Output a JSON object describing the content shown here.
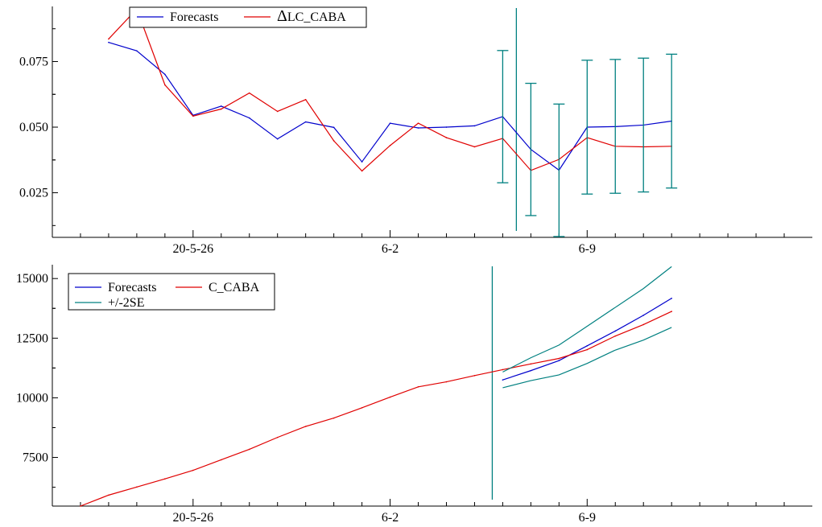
{
  "colors": {
    "forecast": "#0000cc",
    "actual": "#e00000",
    "band": "#008080",
    "axis": "#000000"
  },
  "chart_data": [
    {
      "type": "line",
      "title": "",
      "xlabel": "",
      "ylabel": "",
      "x": [
        "2020-05-22",
        "2020-05-23",
        "2020-05-24",
        "2020-05-25",
        "2020-05-26",
        "2020-05-27",
        "2020-05-28",
        "2020-05-29",
        "2020-05-30",
        "2020-05-31",
        "2020-06-01",
        "2020-06-02",
        "2020-06-03",
        "2020-06-04",
        "2020-06-05",
        "2020-06-06",
        "2020-06-07",
        "2020-06-08",
        "2020-06-09",
        "2020-06-10",
        "2020-06-11",
        "2020-06-12",
        "2020-06-13",
        "2020-06-14",
        "2020-06-15",
        "2020-06-16"
      ],
      "xlim": [
        "2020-05-21",
        "2020-06-17"
      ],
      "x_ticks": [
        {
          "x": "2020-05-26",
          "label": "20-5-26"
        },
        {
          "x": "2020-06-02",
          "label": "6-2"
        },
        {
          "x": "2020-06-09",
          "label": "6-9"
        }
      ],
      "y_ticks": [
        {
          "value": 0.025,
          "label": "0.025"
        },
        {
          "value": 0.05,
          "label": "0.050"
        },
        {
          "value": 0.075,
          "label": "0.075"
        }
      ],
      "ylim": [
        0.008,
        0.096
      ],
      "forecast_origin": "2020-06-07",
      "legend": {
        "placement": "top-left",
        "entries": [
          "Forecasts",
          "ΔLC_CABA"
        ]
      },
      "series": [
        {
          "name": "Forecasts",
          "color_key": "forecast",
          "style": "line",
          "x": [
            "2020-05-23",
            "2020-05-24",
            "2020-05-25",
            "2020-05-26",
            "2020-05-27",
            "2020-05-28",
            "2020-05-29",
            "2020-05-30",
            "2020-05-31",
            "2020-06-01",
            "2020-06-02",
            "2020-06-03",
            "2020-06-04",
            "2020-06-05",
            "2020-06-06",
            "2020-06-07",
            "2020-06-08",
            "2020-06-09",
            "2020-06-10",
            "2020-06-11",
            "2020-06-12"
          ],
          "values": [
            0.0823,
            0.0791,
            0.0701,
            0.0545,
            0.058,
            0.0535,
            0.0455,
            0.052,
            0.0499,
            0.0368,
            0.0515,
            0.0497,
            0.05,
            0.0505,
            0.054,
            0.0415,
            0.0336,
            0.05,
            0.0502,
            0.0508,
            0.0523
          ]
        },
        {
          "name": "ΔLC_CABA",
          "color_key": "actual",
          "style": "line",
          "x": [
            "2020-05-23",
            "2020-05-24",
            "2020-05-25",
            "2020-05-26",
            "2020-05-27",
            "2020-05-28",
            "2020-05-29",
            "2020-05-30",
            "2020-05-31",
            "2020-06-01",
            "2020-06-02",
            "2020-06-03",
            "2020-06-04",
            "2020-06-05",
            "2020-06-06",
            "2020-06-07",
            "2020-06-08",
            "2020-06-09",
            "2020-06-10",
            "2020-06-11",
            "2020-06-12"
          ],
          "values": [
            0.0836,
            0.095,
            0.0661,
            0.0542,
            0.0569,
            0.063,
            0.056,
            0.0605,
            0.0448,
            0.0333,
            0.043,
            0.0515,
            0.046,
            0.0425,
            0.0457,
            0.0335,
            0.0377,
            0.046,
            0.0427,
            0.0425,
            0.0427
          ]
        },
        {
          "name": "",
          "color_key": "band",
          "style": "errorbar",
          "x": [
            "2020-06-06",
            "2020-06-07",
            "2020-06-08",
            "2020-06-09",
            "2020-06-10",
            "2020-06-11",
            "2020-06-12"
          ],
          "center": [
            0.054,
            0.0415,
            0.0336,
            0.05,
            0.0502,
            0.0508,
            0.0523
          ],
          "low": [
            0.0288,
            0.0163,
            0.0083,
            0.0245,
            0.0248,
            0.0253,
            0.0268
          ],
          "high": [
            0.0792,
            0.0667,
            0.0588,
            0.0755,
            0.0758,
            0.0763,
            0.0778
          ]
        }
      ]
    },
    {
      "type": "line",
      "title": "",
      "xlabel": "",
      "ylabel": "",
      "x": [
        "2020-05-22",
        "2020-05-23",
        "2020-05-24",
        "2020-05-25",
        "2020-05-26",
        "2020-05-27",
        "2020-05-28",
        "2020-05-29",
        "2020-05-30",
        "2020-05-31",
        "2020-06-01",
        "2020-06-02",
        "2020-06-03",
        "2020-06-04",
        "2020-06-05",
        "2020-06-06",
        "2020-06-07",
        "2020-06-08",
        "2020-06-09",
        "2020-06-10",
        "2020-06-11",
        "2020-06-12",
        "2020-06-13",
        "2020-06-14",
        "2020-06-15",
        "2020-06-16"
      ],
      "xlim": [
        "2020-05-21",
        "2020-06-17"
      ],
      "x_ticks": [
        {
          "x": "2020-05-26",
          "label": "20-5-26"
        },
        {
          "x": "2020-06-02",
          "label": "6-2"
        },
        {
          "x": "2020-06-09",
          "label": "6-9"
        }
      ],
      "y_ticks": [
        {
          "value": 7500,
          "label": "7500"
        },
        {
          "value": 10000,
          "label": "10000"
        },
        {
          "value": 12500,
          "label": "12500"
        },
        {
          "value": 15000,
          "label": "15000"
        }
      ],
      "ylim": [
        5460,
        15580
      ],
      "forecast_origin": "2020-06-05",
      "legend": {
        "placement": "top-left",
        "entries": [
          "Forecasts",
          "C_CABA",
          "+/-2SE"
        ]
      },
      "series": [
        {
          "name": "Forecasts",
          "color_key": "forecast",
          "style": "line",
          "x": [
            "2020-06-06",
            "2020-06-07",
            "2020-06-08",
            "2020-06-09",
            "2020-06-10",
            "2020-06-11",
            "2020-06-12"
          ],
          "values": [
            10750,
            11140,
            11560,
            12180,
            12800,
            13460,
            14170
          ]
        },
        {
          "name": "C_CABA",
          "color_key": "actual",
          "style": "line",
          "x": [
            "2020-05-22",
            "2020-05-23",
            "2020-05-24",
            "2020-05-25",
            "2020-05-26",
            "2020-05-27",
            "2020-05-28",
            "2020-05-29",
            "2020-05-30",
            "2020-05-31",
            "2020-06-01",
            "2020-06-02",
            "2020-06-03",
            "2020-06-04",
            "2020-06-05",
            "2020-06-06",
            "2020-06-07",
            "2020-06-08",
            "2020-06-09",
            "2020-06-10",
            "2020-06-11",
            "2020-06-12"
          ],
          "values": [
            5460,
            5920,
            6260,
            6600,
            6960,
            7400,
            7840,
            8340,
            8800,
            9150,
            9580,
            10030,
            10460,
            10670,
            10930,
            11180,
            11420,
            11650,
            12020,
            12590,
            13070,
            13620
          ]
        },
        {
          "name": "+/-2SE",
          "color_key": "band",
          "style": "band",
          "x": [
            "2020-06-06",
            "2020-06-07",
            "2020-06-08",
            "2020-06-09",
            "2020-06-10",
            "2020-06-11",
            "2020-06-12"
          ],
          "low": [
            10420,
            10720,
            10960,
            11440,
            12000,
            12420,
            12950
          ],
          "high": [
            11080,
            11680,
            12210,
            13000,
            13790,
            14580,
            15500
          ]
        }
      ]
    }
  ]
}
